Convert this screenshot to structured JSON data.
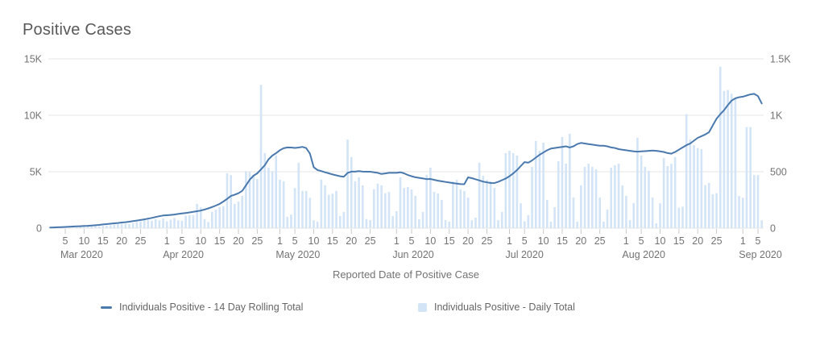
{
  "chart_data": {
    "type": "bar",
    "subtype": "dual-axis combo: line (left axis) + daily bars (right axis)",
    "title": "Positive Cases",
    "xlabel": "Reported Date of Positive Case",
    "x_start_date": "2020-03-01",
    "x_end_date": "2020-09-06",
    "x_axis": {
      "months": [
        {
          "label": "Mar 2020",
          "days": 31,
          "tick_days": [
            5,
            10,
            15,
            20,
            25
          ]
        },
        {
          "label": "Apr 2020",
          "days": 30,
          "tick_days": [
            1,
            5,
            10,
            15,
            20,
            25
          ]
        },
        {
          "label": "May 2020",
          "days": 31,
          "tick_days": [
            1,
            5,
            10,
            15,
            20,
            25
          ]
        },
        {
          "label": "Jun 2020",
          "days": 30,
          "tick_days": [
            1,
            5,
            10,
            15,
            20,
            25
          ]
        },
        {
          "label": "Jul 2020",
          "days": 31,
          "tick_days": [
            1,
            5,
            10,
            15,
            20,
            25
          ]
        },
        {
          "label": "Aug 2020",
          "days": 31,
          "tick_days": [
            1,
            5,
            10,
            15,
            20,
            25
          ]
        },
        {
          "label": "Sep 2020",
          "days": 6,
          "tick_days": [
            1,
            5
          ]
        }
      ]
    },
    "left_axis": {
      "tick_labels": [
        "0",
        "5K",
        "10K",
        "15K"
      ],
      "tick_values": [
        0,
        5000,
        10000,
        15000
      ],
      "range": [
        0,
        15000
      ],
      "applies_to": "Individuals Positive - 14 Day Rolling Total"
    },
    "right_axis": {
      "tick_labels": [
        "0",
        "500",
        "1K",
        "1.5K"
      ],
      "tick_values": [
        0,
        500,
        1000,
        1500
      ],
      "range": [
        0,
        1500
      ],
      "applies_to": "Individuals Positive - Daily Total"
    },
    "grid": "horizontal gridlines at axis ticks, no vertical grid",
    "legend_position": "bottom",
    "series": [
      {
        "name": "Individuals Positive - 14 Day Rolling Total",
        "type": "line",
        "axis": "left",
        "color": "#4a79ad",
        "values": [
          60,
          65,
          75,
          90,
          110,
          130,
          140,
          155,
          170,
          190,
          210,
          230,
          255,
          285,
          330,
          360,
          395,
          430,
          460,
          500,
          530,
          570,
          620,
          670,
          720,
          775,
          840,
          905,
          985,
          1060,
          1120,
          1140,
          1170,
          1210,
          1260,
          1300,
          1340,
          1390,
          1440,
          1500,
          1560,
          1650,
          1750,
          1870,
          2000,
          2150,
          2360,
          2590,
          2850,
          2960,
          3090,
          3300,
          3790,
          4290,
          4640,
          4860,
          5210,
          5570,
          6100,
          6430,
          6650,
          6900,
          7080,
          7150,
          7140,
          7110,
          7140,
          7200,
          7090,
          6600,
          5400,
          5150,
          5060,
          4950,
          4860,
          4760,
          4680,
          4600,
          4560,
          4900,
          5010,
          5010,
          5050,
          5010,
          5000,
          5000,
          4950,
          4900,
          4800,
          4850,
          4900,
          4900,
          4900,
          4950,
          4860,
          4710,
          4600,
          4510,
          4460,
          4400,
          4340,
          4360,
          4280,
          4210,
          4150,
          4090,
          4040,
          3990,
          3950,
          3900,
          3890,
          4500,
          4430,
          4330,
          4230,
          4120,
          4060,
          4000,
          3990,
          4100,
          4250,
          4400,
          4600,
          4850,
          5150,
          5500,
          5850,
          5800,
          6000,
          6250,
          6500,
          6700,
          6900,
          7050,
          7100,
          7150,
          7200,
          7250,
          7150,
          7250,
          7450,
          7550,
          7500,
          7450,
          7400,
          7350,
          7300,
          7300,
          7250,
          7150,
          7100,
          7000,
          6950,
          6900,
          6850,
          6800,
          6780,
          6800,
          6820,
          6850,
          6880,
          6850,
          6800,
          6750,
          6650,
          6600,
          6750,
          6950,
          7150,
          7350,
          7500,
          7750,
          8000,
          8150,
          8300,
          8500,
          9100,
          9700,
          10100,
          10450,
          10900,
          11300,
          11500,
          11600,
          11650,
          11750,
          11850,
          11900,
          11700,
          11050
        ]
      },
      {
        "name": "Individuals Positive - Daily Total",
        "type": "bar",
        "axis": "right",
        "color": "#d2e4f6",
        "values": [
          2,
          3,
          2,
          4,
          5,
          6,
          5,
          8,
          10,
          12,
          14,
          15,
          18,
          16,
          20,
          22,
          25,
          30,
          35,
          40,
          38,
          35,
          45,
          55,
          60,
          70,
          75,
          65,
          80,
          70,
          85,
          60,
          75,
          90,
          70,
          65,
          110,
          115,
          115,
          215,
          185,
          80,
          55,
          145,
          165,
          185,
          195,
          485,
          470,
          215,
          235,
          285,
          505,
          500,
          470,
          435,
          1270,
          665,
          535,
          505,
          645,
          430,
          415,
          100,
          120,
          355,
          580,
          330,
          330,
          270,
          70,
          57,
          430,
          380,
          295,
          305,
          330,
          107,
          143,
          785,
          630,
          415,
          450,
          380,
          80,
          71,
          345,
          395,
          380,
          310,
          320,
          107,
          150,
          450,
          357,
          364,
          343,
          286,
          79,
          143,
          471,
          536,
          321,
          307,
          250,
          71,
          57,
          414,
          428,
          343,
          329,
          271,
          71,
          93,
          579,
          464,
          428,
          414,
          357,
          71,
          143,
          664,
          686,
          664,
          643,
          220,
          60,
          115,
          543,
          771,
          686,
          757,
          250,
          57,
          186,
          593,
          807,
          571,
          836,
          271,
          57,
          379,
          543,
          571,
          543,
          521,
          271,
          57,
          164,
          536,
          557,
          571,
          379,
          286,
          71,
          221,
          800,
          643,
          543,
          507,
          271,
          43,
          220,
          620,
          550,
          570,
          630,
          180,
          190,
          1010,
          785,
          735,
          710,
          700,
          380,
          400,
          300,
          310,
          1430,
          1215,
          1225,
          1190,
          1150,
          285,
          270,
          895,
          895,
          470,
          470,
          70
        ]
      }
    ]
  },
  "legend": {
    "items": [
      {
        "label": "Individuals Positive - 14 Day Rolling Total",
        "marker": "line-dash"
      },
      {
        "label": "Individuals Positive - Daily Total",
        "marker": "square"
      }
    ]
  },
  "colors": {
    "title_text": "#595959",
    "axis_text": "#737373",
    "legend_text": "#666666",
    "gridline": "#e4e4e4",
    "tick_mark": "#c9c9c9",
    "background": "#ffffff"
  }
}
